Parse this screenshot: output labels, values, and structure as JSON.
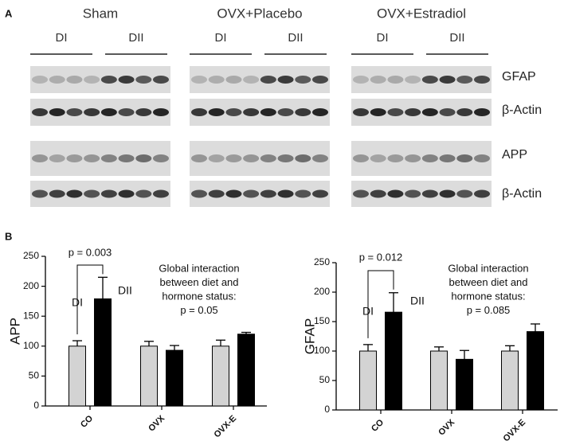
{
  "panel_labels": [
    "A",
    "B"
  ],
  "blots": {
    "groups": [
      "Sham",
      "OVX+Placebo",
      "OVX+Estradiol"
    ],
    "subgroups": [
      "DI",
      "DII"
    ],
    "rows": [
      "GFAP",
      "β-Actin",
      "APP",
      "β-Actin"
    ]
  },
  "chart_data": [
    {
      "type": "bar",
      "y_label": "APP",
      "categories": [
        "CO",
        "OVX",
        "OVX-E"
      ],
      "series": [
        {
          "name": "DI",
          "color": "#d3d3d3",
          "values": [
            100,
            100,
            100
          ],
          "errors": [
            9,
            8,
            10
          ]
        },
        {
          "name": "DII",
          "color": "#000000",
          "values": [
            179,
            93,
            120
          ],
          "errors": [
            36,
            8,
            3
          ]
        }
      ],
      "ylim": [
        0,
        250
      ],
      "yticks": [
        0,
        50,
        100,
        150,
        200,
        250
      ],
      "p_value": "p = 0.003",
      "annotation": [
        "Global interaction",
        "between diet and",
        "hormone status:",
        "p = 0.05"
      ]
    },
    {
      "type": "bar",
      "y_label": "GFAP",
      "categories": [
        "CO",
        "OVX",
        "OVX-E"
      ],
      "series": [
        {
          "name": "DI",
          "color": "#d3d3d3",
          "values": [
            100,
            100,
            100
          ],
          "errors": [
            11,
            7,
            9
          ]
        },
        {
          "name": "DII",
          "color": "#000000",
          "values": [
            166,
            86,
            133
          ],
          "errors": [
            33,
            15,
            13
          ]
        }
      ],
      "ylim": [
        0,
        250
      ],
      "yticks": [
        0,
        50,
        100,
        150,
        200,
        250
      ],
      "p_value": "p = 0.012",
      "annotation": [
        "Global interaction",
        "between diet and",
        "hormone status:",
        "p = 0.085"
      ]
    }
  ]
}
